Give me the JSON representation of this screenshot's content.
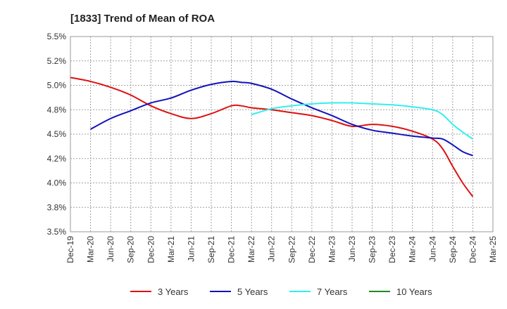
{
  "chart_data": {
    "type": "line",
    "title": "[1833]  Trend of Mean of ROA",
    "xlabel": "",
    "ylabel": "",
    "ylim": [
      3.5,
      5.5
    ],
    "y_ticks": [
      3.5,
      3.75,
      4.0,
      4.25,
      4.5,
      4.75,
      5.0,
      5.25,
      5.5
    ],
    "y_tick_labels": [
      "3.5%",
      "3.8%",
      "4.0%",
      "4.2%",
      "4.5%",
      "4.8%",
      "5.0%",
      "5.2%",
      "5.5%"
    ],
    "x_labels": [
      "Dec-19",
      "Mar-20",
      "Jun-20",
      "Sep-20",
      "Dec-20",
      "Mar-21",
      "Jun-21",
      "Sep-21",
      "Dec-21",
      "Mar-22",
      "Jun-22",
      "Sep-22",
      "Dec-22",
      "Mar-23",
      "Jun-23",
      "Sep-23",
      "Dec-23",
      "Mar-24",
      "Jun-24",
      "Sep-24",
      "Dec-24",
      "Mar-25"
    ],
    "grid": true,
    "legend_position": "bottom",
    "series": [
      {
        "name": "3 Years",
        "color": "#dd1111",
        "x": [
          0,
          1,
          2,
          3,
          4,
          5,
          6,
          7,
          8,
          8.5,
          9,
          10,
          11,
          12,
          13,
          14,
          15,
          16,
          17,
          18,
          18.5,
          19,
          19.5,
          20
        ],
        "values": [
          5.08,
          5.04,
          4.98,
          4.9,
          4.79,
          4.71,
          4.66,
          4.71,
          4.79,
          4.79,
          4.77,
          4.75,
          4.72,
          4.69,
          4.64,
          4.58,
          4.6,
          4.58,
          4.53,
          4.45,
          4.35,
          4.17,
          4.0,
          3.86
        ]
      },
      {
        "name": "5 Years",
        "color": "#1111bb",
        "x": [
          1,
          2,
          3,
          4,
          5,
          6,
          7,
          8,
          8.5,
          9,
          10,
          11,
          12,
          13,
          14,
          15,
          16,
          17,
          18,
          18.5,
          19,
          19.5,
          20
        ],
        "values": [
          4.55,
          4.66,
          4.74,
          4.82,
          4.87,
          4.95,
          5.01,
          5.04,
          5.03,
          5.02,
          4.96,
          4.86,
          4.77,
          4.69,
          4.6,
          4.54,
          4.51,
          4.48,
          4.46,
          4.45,
          4.39,
          4.32,
          4.28
        ]
      },
      {
        "name": "7 Years",
        "color": "#33eeee",
        "x": [
          9,
          10,
          11,
          12,
          13,
          14,
          15,
          16,
          17,
          18,
          18.5,
          19,
          19.5,
          20
        ],
        "values": [
          4.7,
          4.76,
          4.79,
          4.81,
          4.82,
          4.82,
          4.81,
          4.8,
          4.78,
          4.75,
          4.7,
          4.6,
          4.52,
          4.45
        ]
      },
      {
        "name": "10 Years",
        "color": "#228822",
        "x": [],
        "values": []
      }
    ]
  }
}
